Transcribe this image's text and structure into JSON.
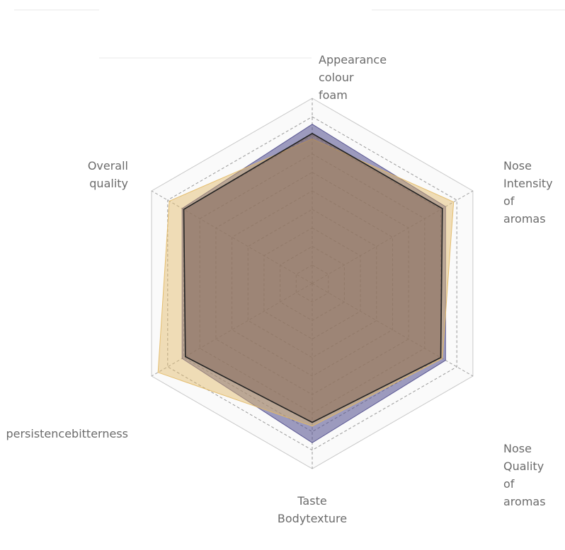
{
  "chart_data": {
    "type": "radar",
    "axes": [
      {
        "lines": [
          "Appearance",
          "colour",
          "foam"
        ],
        "anchor": "start"
      },
      {
        "lines": [
          "Nose",
          "Intensity",
          "of",
          "aromas"
        ],
        "anchor": "start"
      },
      {
        "lines": [
          "Nose",
          "Quality",
          "of",
          "aromas"
        ],
        "anchor": "start"
      },
      {
        "lines": [
          "Taste",
          "Bodytexture"
        ],
        "anchor": "middle"
      },
      {
        "lines": [
          "persistencebitterness"
        ],
        "anchor": "end"
      },
      {
        "lines": [
          "Overall",
          "quality"
        ],
        "anchor": "end"
      }
    ],
    "rings": 10,
    "rmax": 10,
    "series": [
      {
        "values": [
          8.6,
          8.3,
          8.3,
          8.6,
          8.1,
          8.1
        ],
        "color": "#4e4a8c",
        "opacity": 0.55
      },
      {
        "values": [
          7.8,
          8.8,
          8.1,
          7.7,
          9.6,
          8.9
        ],
        "color": "#e3b964",
        "opacity": 0.45
      },
      {
        "values": [
          8.1,
          8.1,
          8.0,
          7.5,
          7.9,
          8.0
        ],
        "color": "#7b5d4f",
        "opacity": 0.45
      }
    ],
    "outline": {
      "values": [
        8.1,
        8.1,
        8.0,
        7.5,
        7.9,
        8.0
      ],
      "color": "#222222"
    }
  }
}
